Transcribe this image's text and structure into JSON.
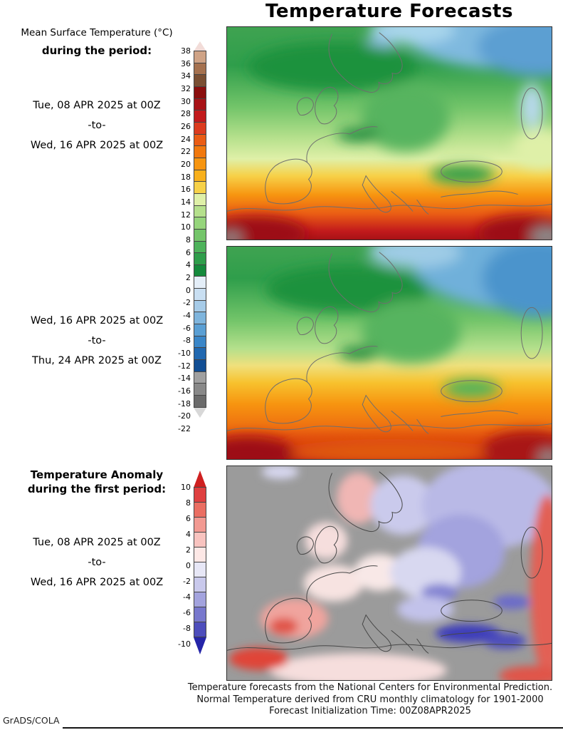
{
  "title": "Temperature Forecasts",
  "watermark": "GrADS/COLA",
  "labels": {
    "temp_heading_line1": "Mean Surface Temperature (°C)",
    "temp_heading_line2": "during the period:",
    "anomaly_heading_line1": "Temperature Anomaly",
    "anomaly_heading_line2": "during the first period:"
  },
  "periods": {
    "period1": {
      "start": "Tue, 08 APR 2025 at 00Z",
      "separator": "-to-",
      "end": "Wed, 16 APR 2025 at 00Z"
    },
    "period2": {
      "start": "Wed, 16 APR 2025 at 00Z",
      "separator": "-to-",
      "end": "Thu, 24 APR 2025 at 00Z"
    },
    "anomaly_period": {
      "start": "Tue, 08 APR 2025 at 00Z",
      "separator": "-to-",
      "end": "Wed, 16 APR 2025 at 00Z"
    }
  },
  "temperature_colorbar": {
    "unit": "°C",
    "ticks": [
      38,
      36,
      34,
      32,
      30,
      28,
      26,
      24,
      22,
      20,
      18,
      16,
      14,
      12,
      10,
      8,
      6,
      4,
      2,
      0,
      -2,
      -4,
      -6,
      -8,
      -10,
      -12,
      -14,
      -16,
      -18,
      -20,
      -22
    ],
    "segment_colors_top_to_bottom": [
      "#cfa386",
      "#a5714f",
      "#7a4f33",
      "#8b0f0e",
      "#a81216",
      "#c21a1c",
      "#dc3b1e",
      "#ea5c14",
      "#f1780d",
      "#f79510",
      "#f8b01c",
      "#f7d148",
      "#dff0a8",
      "#b5e08c",
      "#96d57c",
      "#74c56a",
      "#4eb35b",
      "#2f9e4b",
      "#158a3c",
      "#e4eef8",
      "#c9dff2",
      "#a6cbe8",
      "#7fb5dd",
      "#5a9fd4",
      "#3a86c8",
      "#2168b0",
      "#114e94",
      "#a0a0a0",
      "#888888",
      "#6a6a6a"
    ],
    "arrow_top_color": "#f2dcd8",
    "arrow_bottom_color": "#d8d8d8"
  },
  "anomaly_colorbar": {
    "unit": "°C",
    "ticks": [
      10,
      8,
      6,
      4,
      2,
      0,
      -2,
      -4,
      -6,
      -8,
      -10
    ],
    "segment_colors_top_to_bottom": [
      "#df4040",
      "#ea6e62",
      "#f29a92",
      "#f8c3bf",
      "#fde8e6",
      "#e7e7f6",
      "#c9c9ec",
      "#a3a3de",
      "#7878cd",
      "#4d4dbc"
    ],
    "arrow_top_color": "#cf2020",
    "arrow_bottom_color": "#2525a8"
  },
  "footer": {
    "line1": "Temperature forecasts from the National Centers for Environmental Prediction.",
    "line2": "Normal Temperature derived from CRU monthly climatology for 1901-2000",
    "line3": "Forecast Initialization Time: 00Z08APR2025"
  },
  "chart_data": [
    {
      "type": "heatmap",
      "title": "Mean Surface Temperature (°C)",
      "period": "Tue, 08 APR 2025 at 00Z -to- Wed, 16 APR 2025 at 00Z",
      "region": "Europe and North Africa",
      "legend_position": "left",
      "colorbar_ticks_c": [
        38,
        36,
        34,
        32,
        30,
        28,
        26,
        24,
        22,
        20,
        18,
        16,
        14,
        12,
        10,
        8,
        6,
        4,
        2,
        0,
        -2,
        -4,
        -6,
        -8,
        -10,
        -12,
        -14,
        -16,
        -18,
        -20,
        -22
      ],
      "qualitative_field": "Blues (-10 to 0 C) over the Arctic edge, northern Scandinavia and far NE Russia; greens (0-12 C) over most of central and northern Europe with darkest greens over the Scandinavian mountains, Alps and eastern Turkey; pale greens/yellows (12-18 C) over Iberia and the Mediterranean; oranges (18-26 C) over North Africa and the Middle East; dark reds (26-32 C) along the southern map edge; small gray patches in the bottom corners"
    },
    {
      "type": "heatmap",
      "title": "Mean Surface Temperature (°C)",
      "period": "Wed, 16 APR 2025 at 00Z -to- Thu, 24 APR 2025 at 00Z",
      "region": "Europe and North Africa",
      "legend_position": "left",
      "colorbar_ticks_c": [
        38,
        36,
        34,
        32,
        30,
        28,
        26,
        24,
        22,
        20,
        18,
        16,
        14,
        12,
        10,
        8,
        6,
        4,
        2,
        0,
        -2,
        -4,
        -6,
        -8,
        -10,
        -12,
        -14,
        -16,
        -18,
        -20,
        -22
      ],
      "qualitative_field": "Similar to first period but warmer in the south: blues over the Arctic and NE Russia extend further across the top right; greens (0-12 C) over central/northern Europe; yellow band (14-18 C) across southern Europe; broad orange (18-26 C) over the Mediterranean rim and North Africa with dark red (26-32 C) along the bottom edge"
    },
    {
      "type": "heatmap",
      "title": "Temperature Anomaly (°C)",
      "period": "Tue, 08 APR 2025 at 00Z -to- Wed, 16 APR 2025 at 00Z",
      "baseline": "CRU monthly climatology 1901-2000",
      "region": "Europe and North Africa (ocean masked gray)",
      "legend_position": "left",
      "colorbar_ticks_c": [
        10,
        8,
        6,
        4,
        2,
        0,
        -2,
        -4,
        -6,
        -8,
        -10
      ],
      "qualitative_field": "Warm anomalies (+2 to +8 C) over Iberia, NW Africa, Norway and the far-east map edge; near-normal (0 to +2 C) over France, Britain and central Europe; cold anomalies (-2 to -8 C) over eastern Europe, western Russia, the Balkans, and strongest (-6 to -10 C) over Turkey and the Caucasus"
    }
  ]
}
